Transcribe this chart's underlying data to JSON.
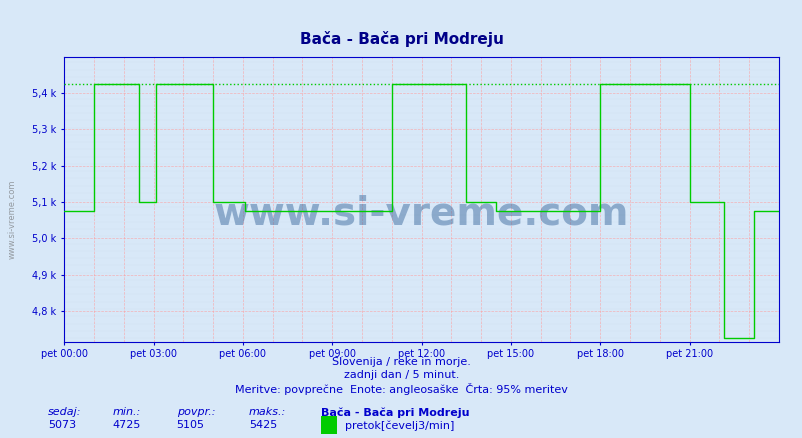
{
  "title": "Bača - Bača pri Modreju",
  "bg_color": "#d8e8f8",
  "plot_bg_color": "#d8e8f8",
  "line_color": "#00cc00",
  "dashed_line_color": "#00cc00",
  "grid_color_major": "#ff9999",
  "grid_color_minor": "#ccddee",
  "axis_color": "#0000cc",
  "text_color": "#0000cc",
  "subtitle1": "Slovenija / reke in morje.",
  "subtitle2": "zadnji dan / 5 minut.",
  "subtitle3": "Meritve: povprečne  Enote: angleosaške  Črta: 95% meritev",
  "footer_label1": "sedaj:",
  "footer_label2": "min.:",
  "footer_label3": "povpr.:",
  "footer_label4": "maks.:",
  "footer_val1": "5073",
  "footer_val2": "4725",
  "footer_val3": "5105",
  "footer_val4": "5425",
  "footer_series": "Bača - Bača pri Modreju",
  "footer_unit": "pretok[čevelj3/min]",
  "ylim_min": 4725,
  "ylim_max": 5500,
  "yticks": [
    4800,
    4900,
    5000,
    5100,
    5200,
    5300,
    5400
  ],
  "ytick_labels": [
    "4,8 k",
    "4,9 k",
    "5,0 k",
    "5,1 k",
    "5,2 k",
    "5,3 k",
    "5,4 k"
  ],
  "xtick_positions": [
    0,
    180,
    360,
    540,
    720,
    900,
    1080,
    1260
  ],
  "xtick_labels": [
    "pet 00:00",
    "pet 03:00",
    "pet 06:00",
    "pet 09:00",
    "pet 12:00",
    "pet 15:00",
    "pet 18:00",
    "pet 21:00"
  ],
  "xmax": 1440,
  "watermark": "www.si-vreme.com",
  "dashed_y": 5425,
  "data_segments": [
    {
      "x_start": 0,
      "x_end": 60,
      "y": 5075
    },
    {
      "x_start": 60,
      "x_end": 150,
      "y": 5425
    },
    {
      "x_start": 150,
      "x_end": 185,
      "y": 5100
    },
    {
      "x_start": 185,
      "x_end": 300,
      "y": 5425
    },
    {
      "x_start": 300,
      "x_end": 365,
      "y": 5100
    },
    {
      "x_start": 365,
      "x_end": 395,
      "y": 5075
    },
    {
      "x_start": 395,
      "x_end": 660,
      "y": 5075
    },
    {
      "x_start": 660,
      "x_end": 720,
      "y": 5425
    },
    {
      "x_start": 720,
      "x_end": 810,
      "y": 5425
    },
    {
      "x_start": 810,
      "x_end": 870,
      "y": 5100
    },
    {
      "x_start": 870,
      "x_end": 1080,
      "y": 5075
    },
    {
      "x_start": 1080,
      "x_end": 1260,
      "y": 5425
    },
    {
      "x_start": 1260,
      "x_end": 1330,
      "y": 5100
    },
    {
      "x_start": 1330,
      "x_end": 1380,
      "y": 4725
    },
    {
      "x_start": 1380,
      "x_end": 1390,
      "y": 4725
    },
    {
      "x_start": 1390,
      "x_end": 1440,
      "y": 5075
    }
  ]
}
